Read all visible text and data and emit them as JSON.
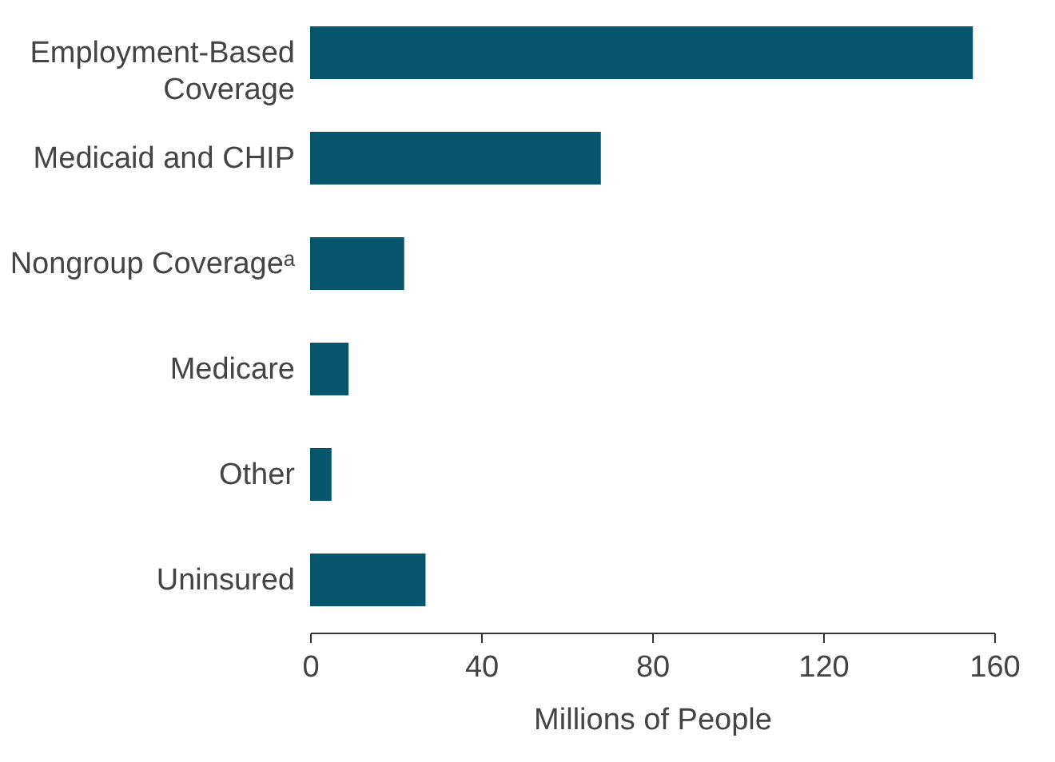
{
  "chart_data": {
    "type": "bar",
    "orientation": "horizontal",
    "xlabel": "Millions of People",
    "categories": [
      "Employment-Based Coverage",
      "Medicaid and CHIP",
      "Nongroup Coverageᵃ",
      "Medicare",
      "Other",
      "Uninsured"
    ],
    "values": [
      155,
      68,
      22,
      9,
      5,
      27
    ],
    "color": "#08566e",
    "xlim": [
      0,
      160
    ],
    "xticks": [
      0,
      40,
      80,
      120,
      160
    ],
    "grid": false
  }
}
